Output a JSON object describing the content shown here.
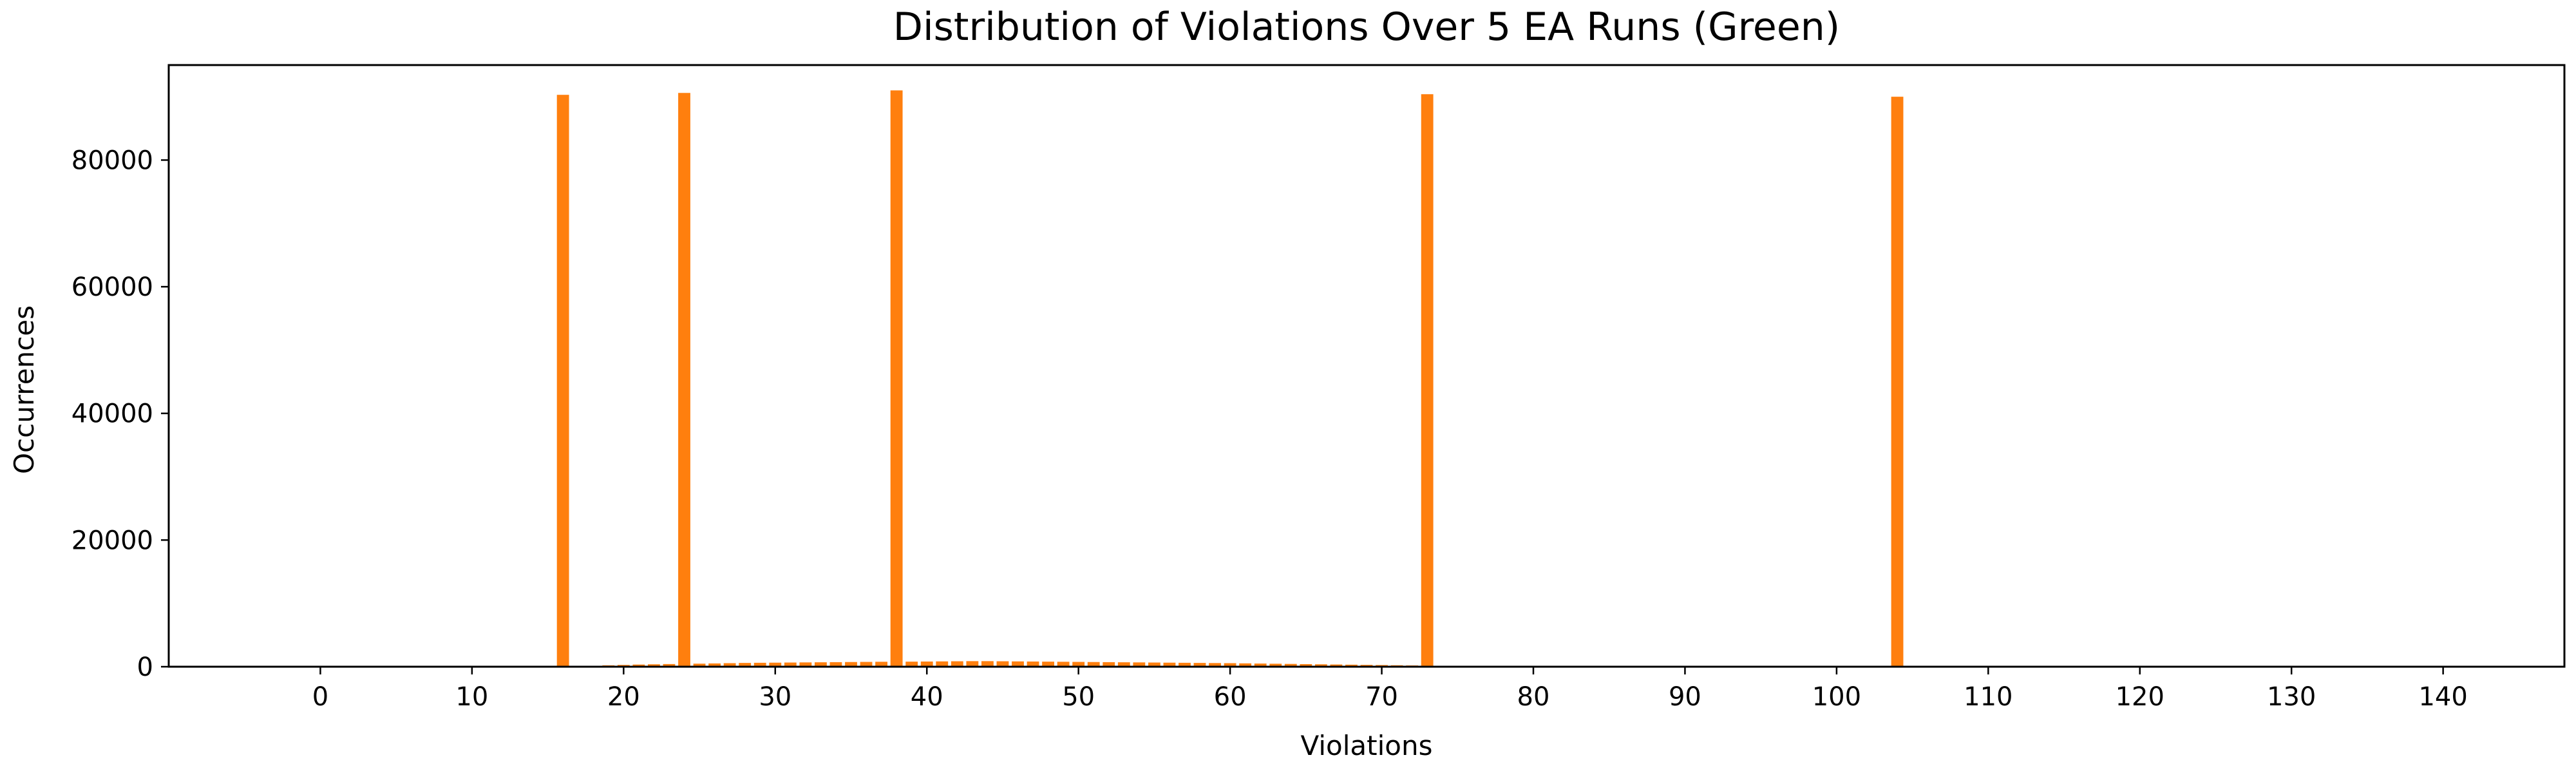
{
  "chart_data": {
    "type": "bar",
    "title": "Distribution of Violations Over 5 EA Runs (Green)",
    "xlabel": "Violations",
    "ylabel": "Occurrences",
    "xlim": [
      -10,
      148
    ],
    "ylim": [
      0,
      95000
    ],
    "xticks": [
      0,
      10,
      20,
      30,
      40,
      50,
      60,
      70,
      80,
      90,
      100,
      110,
      120,
      130,
      140
    ],
    "yticks": [
      0,
      20000,
      40000,
      60000,
      80000
    ],
    "grid": false,
    "bar_color": "#ff7f0e",
    "x": [
      16,
      17,
      18,
      19,
      20,
      21,
      22,
      23,
      24,
      25,
      26,
      27,
      28,
      29,
      30,
      31,
      32,
      33,
      34,
      35,
      36,
      37,
      38,
      39,
      40,
      41,
      42,
      43,
      44,
      45,
      46,
      47,
      48,
      49,
      50,
      51,
      52,
      53,
      54,
      55,
      56,
      57,
      58,
      59,
      60,
      61,
      62,
      63,
      64,
      65,
      66,
      67,
      68,
      69,
      70,
      71,
      72,
      73,
      74,
      75,
      76,
      77,
      78,
      104
    ],
    "values": [
      90300,
      80,
      150,
      220,
      280,
      340,
      380,
      420,
      90600,
      480,
      520,
      560,
      600,
      620,
      640,
      660,
      680,
      700,
      720,
      740,
      760,
      780,
      91000,
      800,
      820,
      840,
      860,
      880,
      880,
      860,
      840,
      820,
      800,
      780,
      760,
      740,
      720,
      700,
      680,
      660,
      640,
      620,
      600,
      580,
      560,
      530,
      500,
      470,
      440,
      410,
      380,
      350,
      320,
      290,
      260,
      230,
      200,
      90400,
      150,
      120,
      90,
      60,
      40,
      90000
    ]
  }
}
